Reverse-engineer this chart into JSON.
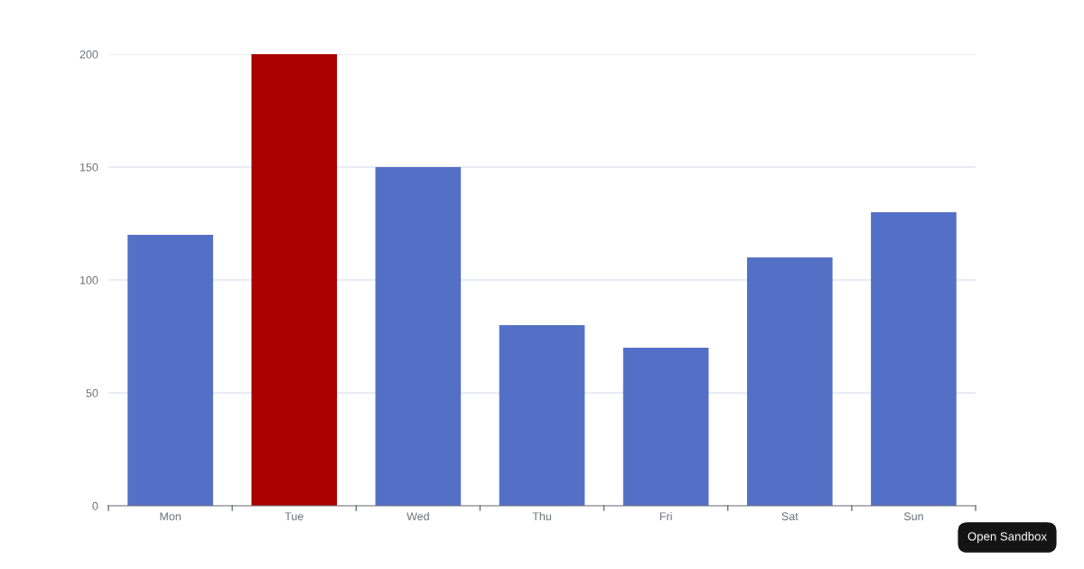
{
  "chart_data": {
    "type": "bar",
    "categories": [
      "Mon",
      "Tue",
      "Wed",
      "Thu",
      "Fri",
      "Sat",
      "Sun"
    ],
    "values": [
      120,
      200,
      150,
      80,
      70,
      110,
      130
    ],
    "colors": [
      "#5470c6",
      "#a90000",
      "#5470c6",
      "#5470c6",
      "#5470c6",
      "#5470c6",
      "#5470c6"
    ],
    "ylim": [
      0,
      200
    ],
    "yticks": [
      0,
      50,
      100,
      150,
      200
    ],
    "grid": "y",
    "annotations": [
      "Open Sandbox"
    ]
  }
}
